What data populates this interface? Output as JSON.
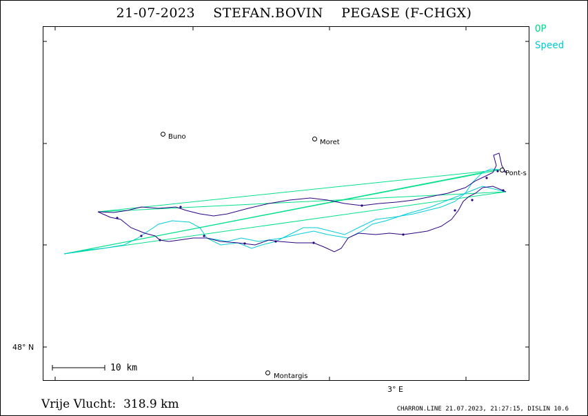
{
  "title": {
    "date": "21-07-2023",
    "pilot": "STEFAN.BOVIN",
    "glider": "PEGASE (F-CHGX)"
  },
  "legend": {
    "items": [
      {
        "label": "OP",
        "color": "#00e08a"
      },
      {
        "label": "Speed",
        "color": "#00ccd6"
      }
    ]
  },
  "places": {
    "buno": "Buno",
    "moret": "Moret",
    "pont": "Pont-s",
    "montargis": "Montargis"
  },
  "axes": {
    "lat_label": "48° N",
    "lon_label": "3° E"
  },
  "scale": {
    "label": "10 km"
  },
  "distance": "Vrije Vlucht:  318.9 km",
  "footer": "CHARRON.LINE 21.07.2023, 21:27:15, DISLIN 10.6",
  "colors": {
    "op_track": "#00e08a",
    "speed_track": "#00ccd6",
    "flight_track": "#2a0080",
    "fix_marker": "#2a0080"
  }
}
